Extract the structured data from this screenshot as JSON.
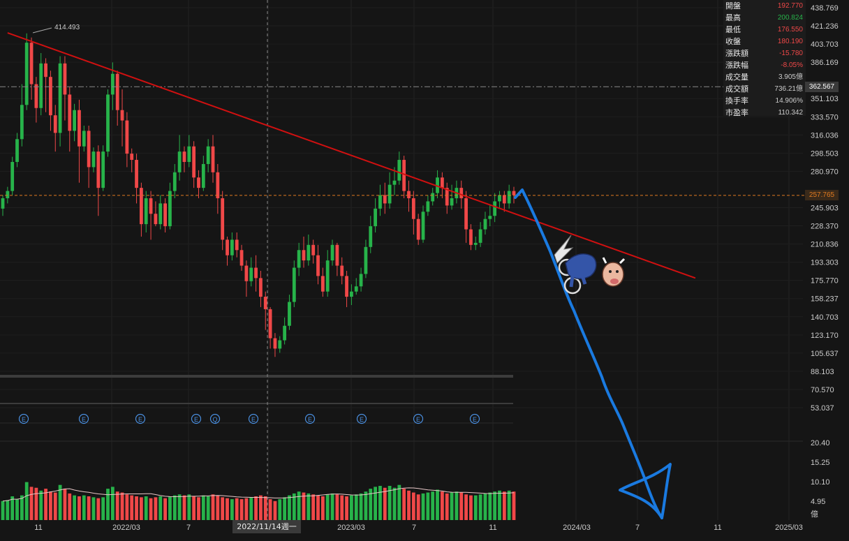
{
  "info_panel": [
    {
      "label": "開盤",
      "value": "192.770",
      "color": "#f04848"
    },
    {
      "label": "最高",
      "value": "200.824",
      "color": "#27b34a"
    },
    {
      "label": "最低",
      "value": "176.550",
      "color": "#f04848"
    },
    {
      "label": "收盤",
      "value": "180.190",
      "color": "#f04848"
    },
    {
      "label": "漲跌額",
      "value": "-15.780",
      "color": "#f04848"
    },
    {
      "label": "漲跌幅",
      "value": "-8.05%",
      "color": "#f04848"
    },
    {
      "label": "成交量",
      "value": "3.905億",
      "color": "#cccccc"
    },
    {
      "label": "成交額",
      "value": "736.21億",
      "color": "#cccccc"
    },
    {
      "label": "換手率",
      "value": "14.906%",
      "color": "#cccccc"
    },
    {
      "label": "市盈率",
      "value": "110.342",
      "color": "#cccccc"
    }
  ],
  "price_axis_labels": [
    "438.769",
    "421.236",
    "403.703",
    "386.169",
    "351.103",
    "333.570",
    "316.036",
    "298.503",
    "280.970",
    "245.903",
    "228.370",
    "210.836",
    "193.303",
    "175.770",
    "158.237",
    "140.703",
    "123.170",
    "105.637",
    "88.103",
    "70.570",
    "53.037"
  ],
  "crosshair_price": "362.567",
  "current_price": "257.765",
  "peak_label": "414.493",
  "volume_axis_labels": [
    "20.40",
    "15.25",
    "10.10",
    "4.95",
    "億"
  ],
  "time_axis_labels": [
    "11",
    "2022/03",
    "7",
    "2023/03",
    "7",
    "11",
    "2024/03",
    "7",
    "11",
    "2025/03"
  ],
  "crosshair_date": "2022/11/14週一",
  "event_markers": [
    "E",
    "E",
    "E",
    "E",
    "Q",
    "E",
    "E",
    "E",
    "E",
    "E"
  ],
  "colors": {
    "up": "#27b34a",
    "down": "#f04848",
    "trendline": "#d01010",
    "arrow": "#1a7ae0",
    "volume_ma": "#e8c8c8",
    "crosshair": "#888888",
    "current": "#e07a20"
  },
  "chart_data": {
    "type": "candlestick",
    "y_range": [
      53.037,
      438.769
    ],
    "volume_range": [
      0,
      20.4
    ],
    "peak": 414.493,
    "current": 257.765,
    "crosshair": 362.567,
    "trendline": {
      "from": [
        1,
        414.493
      ],
      "to": [
        145,
        178
      ]
    },
    "candles": [
      [
        245,
        255,
        238,
        258,
        20
      ],
      [
        255,
        262,
        250,
        266,
        21
      ],
      [
        262,
        290,
        258,
        295,
        25
      ],
      [
        290,
        312,
        285,
        318,
        22
      ],
      [
        312,
        345,
        305,
        365,
        26
      ],
      [
        345,
        405,
        340,
        414,
        40
      ],
      [
        405,
        365,
        350,
        410,
        35
      ],
      [
        365,
        342,
        328,
        372,
        34
      ],
      [
        342,
        385,
        335,
        395,
        31
      ],
      [
        385,
        372,
        338,
        390,
        33
      ],
      [
        372,
        335,
        320,
        378,
        30
      ],
      [
        335,
        318,
        300,
        345,
        29
      ],
      [
        318,
        385,
        305,
        392,
        37
      ],
      [
        385,
        355,
        330,
        392,
        33
      ],
      [
        355,
        320,
        300,
        362,
        28
      ],
      [
        320,
        340,
        310,
        346,
        26
      ],
      [
        340,
        305,
        270,
        350,
        25
      ],
      [
        305,
        320,
        300,
        325,
        26
      ],
      [
        320,
        285,
        265,
        325,
        25
      ],
      [
        285,
        300,
        280,
        304,
        24
      ],
      [
        300,
        265,
        238,
        306,
        23
      ],
      [
        265,
        300,
        262,
        306,
        24
      ],
      [
        300,
        355,
        295,
        360,
        33
      ],
      [
        355,
        375,
        340,
        386,
        35
      ],
      [
        375,
        340,
        325,
        378,
        30
      ],
      [
        340,
        330,
        305,
        360,
        29
      ],
      [
        330,
        298,
        285,
        338,
        27
      ],
      [
        298,
        292,
        280,
        303,
        26
      ],
      [
        292,
        265,
        250,
        298,
        25
      ],
      [
        265,
        230,
        218,
        270,
        24
      ],
      [
        230,
        255,
        222,
        262,
        25
      ],
      [
        255,
        240,
        215,
        262,
        23
      ],
      [
        240,
        230,
        228,
        252,
        24
      ],
      [
        230,
        250,
        225,
        258,
        25
      ],
      [
        250,
        228,
        222,
        255,
        23
      ],
      [
        228,
        262,
        225,
        270,
        25
      ],
      [
        262,
        280,
        255,
        288,
        26
      ],
      [
        280,
        300,
        272,
        316,
        27
      ],
      [
        300,
        290,
        280,
        305,
        26
      ],
      [
        290,
        305,
        285,
        316,
        27
      ],
      [
        305,
        275,
        265,
        310,
        25
      ],
      [
        275,
        265,
        255,
        282,
        24
      ],
      [
        265,
        288,
        262,
        296,
        26
      ],
      [
        288,
        305,
        280,
        312,
        25
      ],
      [
        305,
        280,
        270,
        316,
        27
      ],
      [
        280,
        255,
        240,
        288,
        26
      ],
      [
        255,
        215,
        205,
        262,
        24
      ],
      [
        215,
        200,
        190,
        218,
        23
      ],
      [
        200,
        215,
        195,
        222,
        22
      ],
      [
        215,
        205,
        198,
        222,
        23
      ],
      [
        205,
        190,
        185,
        210,
        22
      ],
      [
        190,
        175,
        160,
        195,
        23
      ],
      [
        175,
        188,
        170,
        198,
        24
      ],
      [
        188,
        178,
        165,
        200,
        25
      ],
      [
        178,
        160,
        150,
        185,
        26
      ],
      [
        160,
        148,
        128,
        165,
        25
      ],
      [
        148,
        120,
        110,
        150,
        22
      ],
      [
        120,
        110,
        102,
        125,
        20
      ],
      [
        110,
        118,
        106,
        122,
        22
      ],
      [
        118,
        132,
        114,
        140,
        24
      ],
      [
        132,
        155,
        128,
        162,
        26
      ],
      [
        155,
        188,
        150,
        195,
        28
      ],
      [
        188,
        205,
        180,
        212,
        30
      ],
      [
        205,
        195,
        188,
        218,
        29
      ],
      [
        195,
        210,
        190,
        220,
        28
      ],
      [
        210,
        200,
        192,
        215,
        27
      ],
      [
        200,
        180,
        172,
        210,
        26
      ],
      [
        180,
        165,
        160,
        188,
        25
      ],
      [
        165,
        195,
        160,
        205,
        27
      ],
      [
        195,
        210,
        190,
        215,
        28
      ],
      [
        210,
        190,
        180,
        212,
        27
      ],
      [
        190,
        180,
        172,
        198,
        26
      ],
      [
        180,
        160,
        150,
        185,
        25
      ],
      [
        160,
        165,
        152,
        172,
        26
      ],
      [
        165,
        170,
        162,
        178,
        27
      ],
      [
        170,
        182,
        165,
        188,
        28
      ],
      [
        182,
        208,
        178,
        215,
        30
      ],
      [
        208,
        228,
        202,
        238,
        33
      ],
      [
        228,
        245,
        222,
        255,
        35
      ],
      [
        245,
        258,
        238,
        268,
        36
      ],
      [
        258,
        250,
        240,
        270,
        34
      ],
      [
        250,
        268,
        245,
        280,
        36
      ],
      [
        268,
        272,
        258,
        285,
        34
      ],
      [
        272,
        292,
        268,
        300,
        37
      ],
      [
        292,
        262,
        255,
        296,
        33
      ],
      [
        262,
        255,
        242,
        272,
        31
      ],
      [
        255,
        235,
        220,
        262,
        29
      ],
      [
        235,
        215,
        210,
        240,
        27
      ],
      [
        215,
        242,
        212,
        248,
        28
      ],
      [
        242,
        252,
        238,
        258,
        29
      ],
      [
        252,
        260,
        248,
        265,
        30
      ],
      [
        260,
        275,
        255,
        282,
        32
      ],
      [
        275,
        265,
        255,
        280,
        30
      ],
      [
        265,
        248,
        240,
        270,
        28
      ],
      [
        248,
        255,
        244,
        268,
        29
      ],
      [
        255,
        265,
        250,
        272,
        30
      ],
      [
        265,
        255,
        245,
        272,
        29
      ],
      [
        255,
        225,
        212,
        262,
        27
      ],
      [
        225,
        210,
        205,
        230,
        26
      ],
      [
        210,
        212,
        205,
        218,
        26
      ],
      [
        212,
        225,
        208,
        232,
        27
      ],
      [
        225,
        235,
        220,
        242,
        28
      ],
      [
        235,
        238,
        228,
        248,
        29
      ],
      [
        238,
        252,
        232,
        260,
        30
      ],
      [
        252,
        258,
        246,
        262,
        31
      ],
      [
        258,
        250,
        242,
        262,
        30
      ],
      [
        250,
        262,
        245,
        268,
        31
      ],
      [
        262,
        258,
        250,
        266,
        30
      ]
    ]
  }
}
